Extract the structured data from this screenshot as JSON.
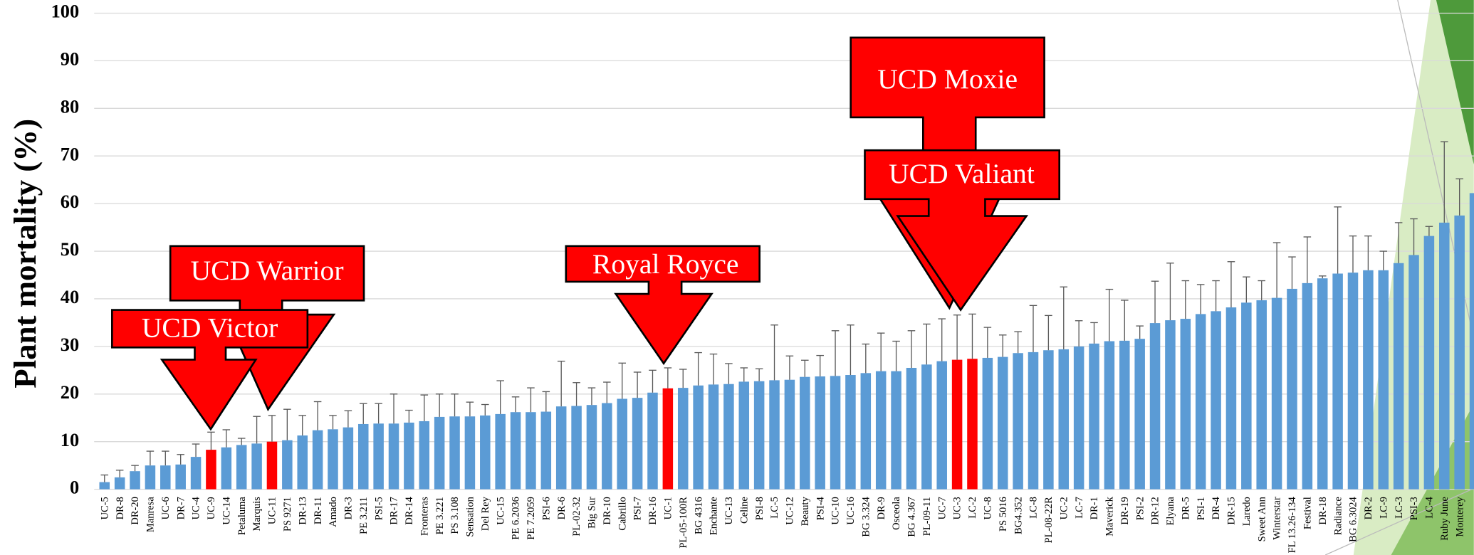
{
  "chart_data": {
    "type": "bar",
    "y_label": "Plant mortality (%)",
    "categories": [
      "UC-5",
      "DR-8",
      "DR-20",
      "Manresa",
      "UC-6",
      "DR-7",
      "UC-4",
      "UC-9",
      "UC-14",
      "Petaluma",
      "Marquis",
      "UC-11",
      "PS 9271",
      "DR-13",
      "DR-11",
      "Amado",
      "DR-3",
      "PE 3.211",
      "PSI-5",
      "DR-17",
      "DR-14",
      "Fronteras",
      "PE 3.221",
      "PS 3.108",
      "Sensation",
      "Del Rey",
      "UC-15",
      "PE 6.2036",
      "PE 7.2059",
      "PSI-6",
      "DR-6",
      "PL-02-32",
      "Big Sur",
      "DR-10",
      "Cabrillo",
      "PSI-7",
      "DR-16",
      "UC-1",
      "PL-05-100R",
      "BG 4316",
      "Enchante",
      "UC-13",
      "Celine",
      "PSI-8",
      "LC-5",
      "UC-12",
      "Beauty",
      "PSI-4",
      "UC-10",
      "UC-16",
      "BG 3.324",
      "DR-9",
      "Osceola",
      "BG 4.367",
      "PL-09-11",
      "UC-7",
      "UC-3",
      "LC-2",
      "UC-8",
      "PS 5016",
      "BG4.352",
      "LC-8",
      "PL-08-22R",
      "UC-2",
      "LC-7",
      "DR-1",
      "Maverick",
      "DR-19",
      "PSI-2",
      "DR-12",
      "Elyana",
      "DR-5",
      "PSI-1",
      "DR-4",
      "DR-15",
      "Laredo",
      "Sweet Ann",
      "Winterstar",
      "FL 13.26-134",
      "Festival",
      "DR-18",
      "Radiance",
      "BG 6.3024",
      "DR-2",
      "LC-9",
      "LC-3",
      "PSI-3",
      "LC-4",
      "Ruby June",
      "Monterey",
      null
    ],
    "values": [
      1.5,
      2.5,
      3.8,
      5,
      5,
      5.2,
      6.8,
      8.3,
      8.8,
      9.3,
      9.6,
      10,
      10.3,
      11.3,
      12.4,
      12.6,
      13,
      13.7,
      13.8,
      13.8,
      14,
      14.3,
      15.2,
      15.3,
      15.3,
      15.5,
      15.8,
      16.2,
      16.2,
      16.3,
      17.4,
      17.5,
      17.7,
      18.1,
      19,
      19.2,
      20.3,
      21.2,
      21.3,
      21.8,
      22,
      22.1,
      22.6,
      22.7,
      22.9,
      23,
      23.6,
      23.7,
      23.8,
      24,
      24.4,
      24.8,
      24.8,
      25.5,
      26.2,
      26.9,
      27.2,
      27.4,
      27.6,
      27.8,
      28.6,
      28.8,
      29.2,
      29.4,
      30,
      30.6,
      31.1,
      31.2,
      31.6,
      34.9,
      35.5,
      35.8,
      36.8,
      37.4,
      38.2,
      39.2,
      39.7,
      40.2,
      42.1,
      43.3,
      44.3,
      45.3,
      45.5,
      46,
      46,
      47.5,
      49.2,
      53.2,
      56,
      57.5,
      62.2
    ],
    "errors": [
      1.5,
      1.5,
      1.2,
      3,
      3,
      2.1,
      2.7,
      3.7,
      3.7,
      1.4,
      5.7,
      5.5,
      6.5,
      4.2,
      6,
      2.9,
      3.5,
      4.3,
      4.2,
      6.2,
      2.6,
      5.5,
      4.8,
      4.7,
      3,
      2.3,
      7,
      3.2,
      5.1,
      4.2,
      9.5,
      4.9,
      3.6,
      4.4,
      7.5,
      5.4,
      4.7,
      4.3,
      3.9,
      6.9,
      6.4,
      4.3,
      2.9,
      2.6,
      11.6,
      5,
      3.5,
      4.4,
      9.5,
      10.5,
      6.1,
      8,
      6.3,
      7.8,
      8.5,
      8.9,
      9.4,
      9.4,
      6.4,
      4.6,
      4.5,
      9.8,
      7.3,
      13.1,
      5.4,
      4.4,
      10.9,
      8.5,
      2.7,
      8.8,
      12,
      8,
      6.2,
      6.4,
      9.6,
      5.4,
      4.1,
      11.6,
      6.7,
      9.7,
      0.5,
      14,
      7.7,
      7.2,
      4,
      8.5,
      7.6,
      2,
      17,
      7.7,
      null
    ],
    "colors": [
      "#5b9bd5",
      "#5b9bd5",
      "#5b9bd5",
      "#5b9bd5",
      "#5b9bd5",
      "#5b9bd5",
      "#5b9bd5",
      "#ff0000",
      "#5b9bd5",
      "#5b9bd5",
      "#5b9bd5",
      "#ff0000",
      "#5b9bd5",
      "#5b9bd5",
      "#5b9bd5",
      "#5b9bd5",
      "#5b9bd5",
      "#5b9bd5",
      "#5b9bd5",
      "#5b9bd5",
      "#5b9bd5",
      "#5b9bd5",
      "#5b9bd5",
      "#5b9bd5",
      "#5b9bd5",
      "#5b9bd5",
      "#5b9bd5",
      "#5b9bd5",
      "#5b9bd5",
      "#5b9bd5",
      "#5b9bd5",
      "#5b9bd5",
      "#5b9bd5",
      "#5b9bd5",
      "#5b9bd5",
      "#5b9bd5",
      "#5b9bd5",
      "#ff0000",
      "#5b9bd5",
      "#5b9bd5",
      "#5b9bd5",
      "#5b9bd5",
      "#5b9bd5",
      "#5b9bd5",
      "#5b9bd5",
      "#5b9bd5",
      "#5b9bd5",
      "#5b9bd5",
      "#5b9bd5",
      "#5b9bd5",
      "#5b9bd5",
      "#5b9bd5",
      "#5b9bd5",
      "#5b9bd5",
      "#5b9bd5",
      "#5b9bd5",
      "#ff0000",
      "#ff0000",
      "#5b9bd5",
      "#5b9bd5",
      "#5b9bd5",
      "#5b9bd5",
      "#5b9bd5",
      "#5b9bd5",
      "#5b9bd5",
      "#5b9bd5",
      "#5b9bd5",
      "#5b9bd5",
      "#5b9bd5",
      "#5b9bd5",
      "#5b9bd5",
      "#5b9bd5",
      "#5b9bd5",
      "#5b9bd5",
      "#5b9bd5",
      "#5b9bd5",
      "#5b9bd5",
      "#5b9bd5",
      "#5b9bd5",
      "#5b9bd5",
      "#5b9bd5",
      "#5b9bd5",
      "#5b9bd5",
      "#5b9bd5",
      "#5b9bd5",
      "#5b9bd5",
      "#5b9bd5",
      "#5b9bd5",
      "#5b9bd5",
      "#5b9bd5",
      "#5b9bd5"
    ],
    "ylim": [
      0,
      100
    ],
    "yticks": [
      0,
      10,
      20,
      30,
      40,
      50,
      60,
      70,
      80,
      90,
      100
    ],
    "grid": true,
    "annotations": [
      {
        "text": "UCD Moxie"
      },
      {
        "text": "UCD Valiant"
      },
      {
        "text": "Royal Royce"
      },
      {
        "text": "UCD Warrior"
      },
      {
        "text": "UCD Victor"
      }
    ]
  }
}
